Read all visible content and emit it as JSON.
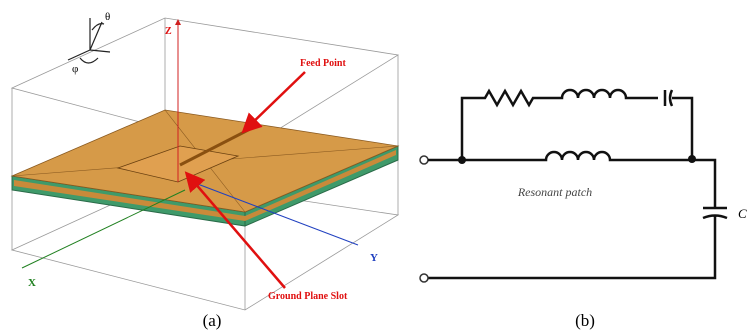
{
  "diagram_a": {
    "axis_z": "Z",
    "axis_x": "X",
    "axis_y": "Y",
    "angle_theta": "θ",
    "angle_phi": "φ",
    "feed_label": "Feed Point",
    "slot_label": "Ground Plane Slot",
    "caption": "(a)"
  },
  "diagram_b": {
    "patch_label": "Resonant patch",
    "capacitor_label": "C",
    "caption": "(b)"
  }
}
